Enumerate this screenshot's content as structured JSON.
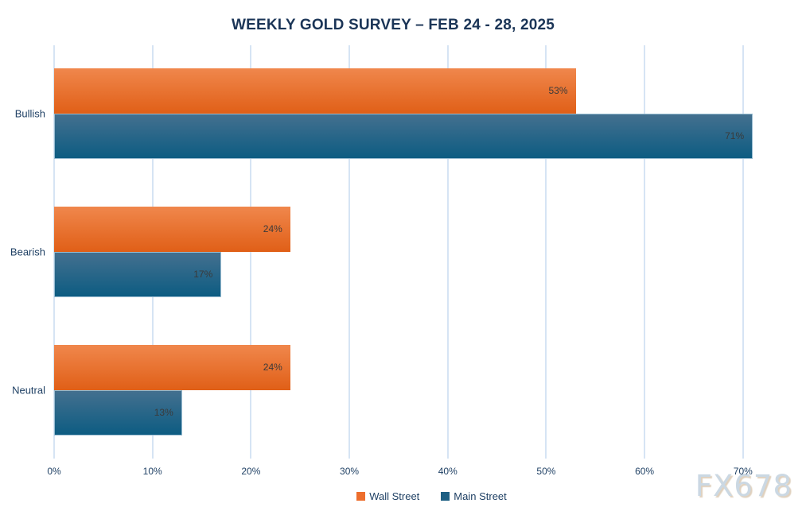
{
  "page": {
    "background_color": "#FFFFFF"
  },
  "chart_data": {
    "type": "bar",
    "orientation": "horizontal",
    "title": "WEEKLY GOLD SURVEY – FEB 24 - 28, 2025",
    "categories": [
      "Bullish",
      "Bearish",
      "Neutral"
    ],
    "series": [
      {
        "name": "Wall Street",
        "values": [
          53,
          24,
          24
        ],
        "data_labels": [
          "53%",
          "24%",
          "24%"
        ],
        "color": "#ED6E2D",
        "gradient_top": "#F0874C",
        "gradient_bottom": "#E05F17"
      },
      {
        "name": "Main Street",
        "values": [
          71,
          17,
          13
        ],
        "data_labels": [
          "71%",
          "17%",
          "13%"
        ],
        "color": "#1D5F83",
        "gradient_top": "#44708F",
        "gradient_bottom": "#0D5C82"
      }
    ],
    "xlabel": "",
    "ylabel": "",
    "x_ticks": [
      {
        "value": 0,
        "label": "0%"
      },
      {
        "value": 10,
        "label": "10%"
      },
      {
        "value": 20,
        "label": "20%"
      },
      {
        "value": 30,
        "label": "30%"
      },
      {
        "value": 40,
        "label": "40%"
      },
      {
        "value": 50,
        "label": "50%"
      },
      {
        "value": 60,
        "label": "60%"
      },
      {
        "value": 70,
        "label": "70%"
      }
    ],
    "xlim": [
      0,
      76
    ],
    "grid": "vertical-only",
    "gridline_color": "#D6E4F4",
    "legend_position": "bottom-center",
    "title_color": "#1B3557",
    "text_color": "#1F4064",
    "bar_label_color": "#3A3A3A",
    "watermark": "FX678",
    "watermark_color": "#CBD8E3"
  }
}
